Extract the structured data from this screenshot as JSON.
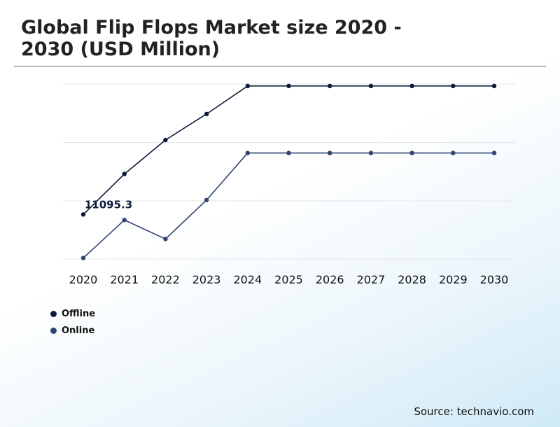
{
  "title": "Global Flip Flops Market size 2020 - 2030 (USD Million)",
  "source": "Source: technavio.com",
  "chart_data": {
    "type": "line",
    "title": "Global Flip Flops Market size 2020 - 2030 (USD Million)",
    "xlabel": "",
    "ylabel": "",
    "categories": [
      "2020",
      "2021",
      "2022",
      "2023",
      "2024",
      "2025",
      "2026",
      "2027",
      "2028",
      "2029",
      "2030"
    ],
    "series": [
      {
        "name": "Offline",
        "color": "#0c1a3a",
        "values": [
          11095.3,
          11500,
          11840,
          12100,
          12380,
          12380,
          12380,
          12380,
          12380,
          12380,
          12380
        ]
      },
      {
        "name": "Online",
        "color": "#2f4470",
        "values": [
          10660,
          11040,
          10850,
          11240,
          11710,
          11710,
          11710,
          11710,
          11710,
          11710,
          11710
        ]
      }
    ],
    "annotations": [
      {
        "series": 0,
        "index": 0,
        "text": "11095.3"
      }
    ],
    "y_axis_labels": "hidden",
    "ylim": [
      10650,
      12400
    ],
    "grid": true,
    "legend": "bottom-left"
  }
}
